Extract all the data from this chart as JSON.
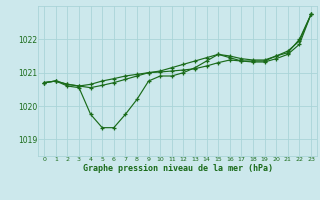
{
  "title": "Graphe pression niveau de la mer (hPa)",
  "background_color": "#cce8ec",
  "grid_color": "#aad4d8",
  "line_color": "#1a6b1a",
  "xlim": [
    -0.5,
    23.5
  ],
  "ylim": [
    1018.5,
    1023.0
  ],
  "yticks": [
    1019,
    1020,
    1021,
    1022
  ],
  "xticks": [
    0,
    1,
    2,
    3,
    4,
    5,
    6,
    7,
    8,
    9,
    10,
    11,
    12,
    13,
    14,
    15,
    16,
    17,
    18,
    19,
    20,
    21,
    22,
    23
  ],
  "series1_x": [
    0,
    1,
    2,
    3,
    4,
    5,
    6,
    7,
    8,
    9,
    10,
    11,
    12,
    13,
    14,
    15,
    16,
    17,
    18,
    19,
    20,
    21,
    22,
    23
  ],
  "series1_y": [
    1020.7,
    1020.75,
    1020.6,
    1020.55,
    1019.75,
    1019.35,
    1019.35,
    1019.75,
    1020.2,
    1020.75,
    1020.9,
    1020.9,
    1021.0,
    1021.15,
    1021.35,
    1021.55,
    1021.45,
    1021.35,
    1021.35,
    1021.35,
    1021.5,
    1021.6,
    1022.0,
    1022.75
  ],
  "series2_x": [
    0,
    1,
    2,
    3,
    4,
    5,
    6,
    7,
    8,
    9,
    10,
    11,
    12,
    13,
    14,
    15,
    16,
    17,
    18,
    19,
    20,
    21,
    22,
    23
  ],
  "series2_y": [
    1020.7,
    1020.75,
    1020.65,
    1020.6,
    1020.65,
    1020.75,
    1020.82,
    1020.9,
    1020.95,
    1021.0,
    1021.02,
    1021.05,
    1021.08,
    1021.12,
    1021.2,
    1021.3,
    1021.38,
    1021.35,
    1021.32,
    1021.32,
    1021.42,
    1021.55,
    1021.85,
    1022.75
  ],
  "series3_x": [
    0,
    1,
    2,
    3,
    4,
    5,
    6,
    7,
    8,
    9,
    10,
    11,
    12,
    13,
    14,
    15,
    16,
    17,
    18,
    19,
    20,
    21,
    22,
    23
  ],
  "series3_y": [
    1020.7,
    1020.75,
    1020.65,
    1020.6,
    1020.55,
    1020.62,
    1020.7,
    1020.8,
    1020.9,
    1021.0,
    1021.05,
    1021.15,
    1021.25,
    1021.35,
    1021.45,
    1021.55,
    1021.5,
    1021.42,
    1021.38,
    1021.38,
    1021.5,
    1021.65,
    1021.95,
    1022.75
  ]
}
